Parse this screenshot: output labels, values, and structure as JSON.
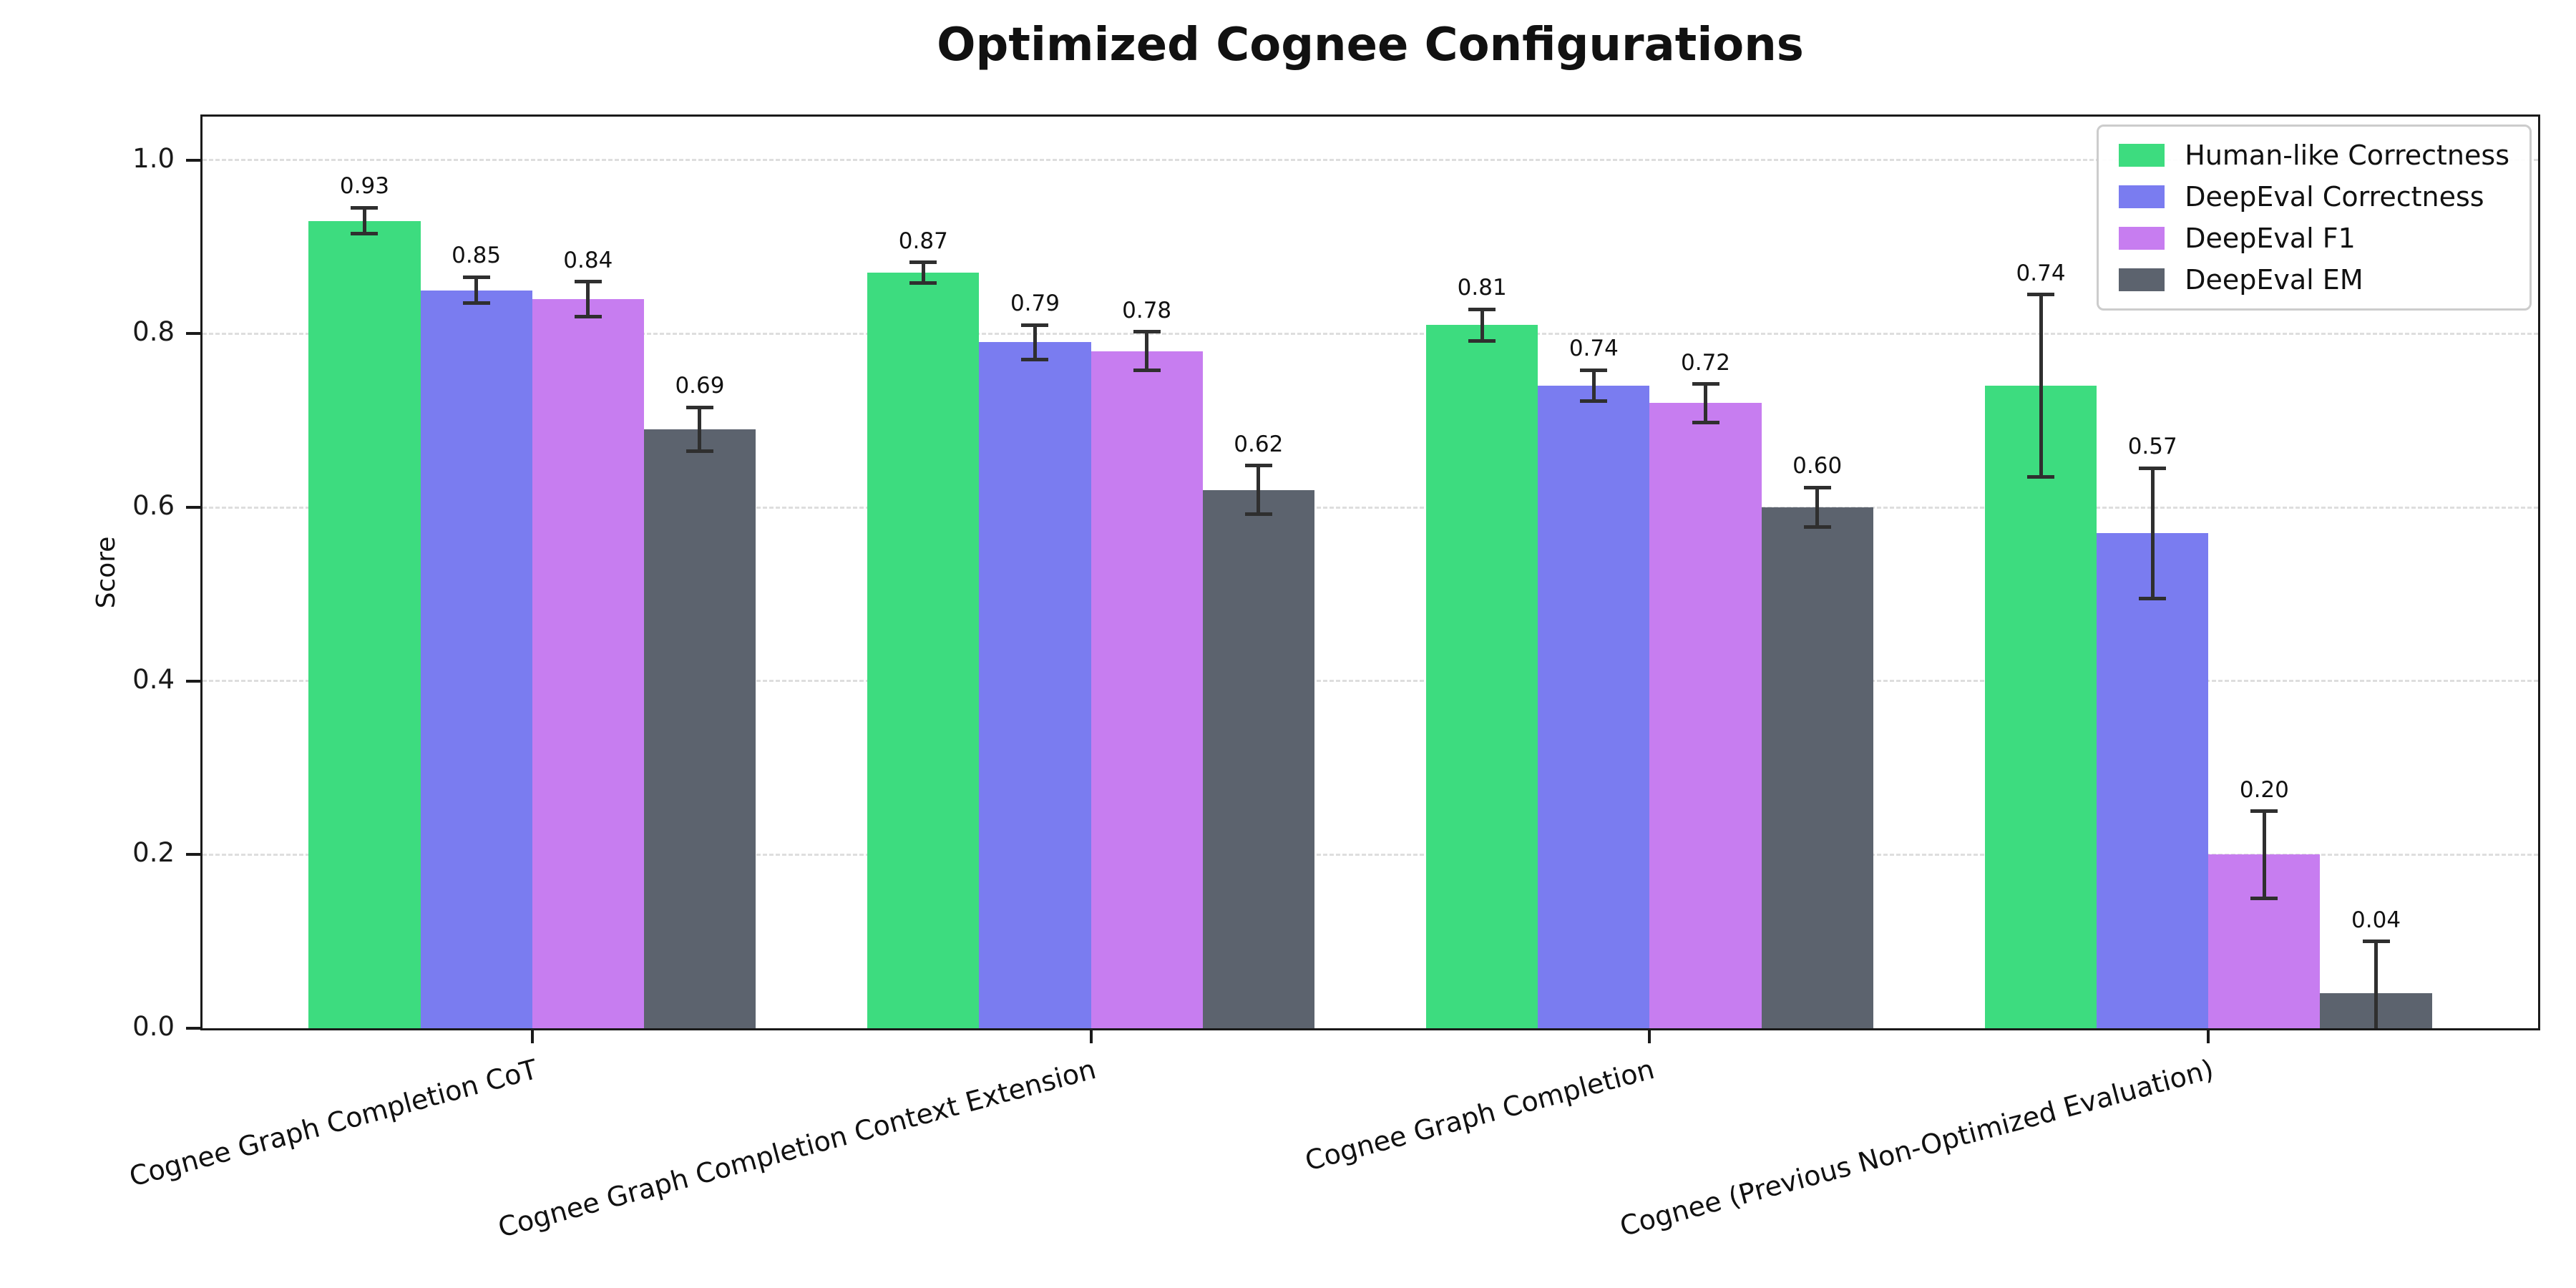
{
  "chart_data": {
    "type": "bar",
    "title": "Optimized Cognee Configurations",
    "xlabel": "",
    "ylabel": "Score",
    "ylim": [
      0,
      1.05
    ],
    "yticks": [
      0.0,
      0.2,
      0.4,
      0.6,
      0.8,
      1.0
    ],
    "grid": "horizontal dashed gridlines",
    "legend_position": "upper right",
    "value_label_format": "0.00",
    "error_bar_color": "#2f2f2f",
    "background_color": "#ffffff",
    "categories": [
      "Cognee Graph Completion CoT",
      "Cognee Graph Completion Context Extension",
      "Cognee Graph Completion",
      "Cognee (Previous Non-Optimized Evaluation)"
    ],
    "series": [
      {
        "name": "Human-like Correctness",
        "color": "#3ddc7f",
        "values": [
          0.93,
          0.87,
          0.81,
          0.74
        ],
        "errors": [
          0.015,
          0.012,
          0.018,
          0.105
        ]
      },
      {
        "name": "DeepEval Correctness",
        "color": "#7a7cf0",
        "values": [
          0.85,
          0.79,
          0.74,
          0.57
        ],
        "errors": [
          0.015,
          0.02,
          0.018,
          0.075
        ]
      },
      {
        "name": "DeepEval F1",
        "color": "#c77df0",
        "values": [
          0.84,
          0.78,
          0.72,
          0.2
        ],
        "errors": [
          0.02,
          0.022,
          0.022,
          0.05
        ]
      },
      {
        "name": "DeepEval EM",
        "color": "#5c636e",
        "values": [
          0.69,
          0.62,
          0.6,
          0.04
        ],
        "errors": [
          0.025,
          0.028,
          0.023,
          0.06
        ]
      }
    ]
  }
}
